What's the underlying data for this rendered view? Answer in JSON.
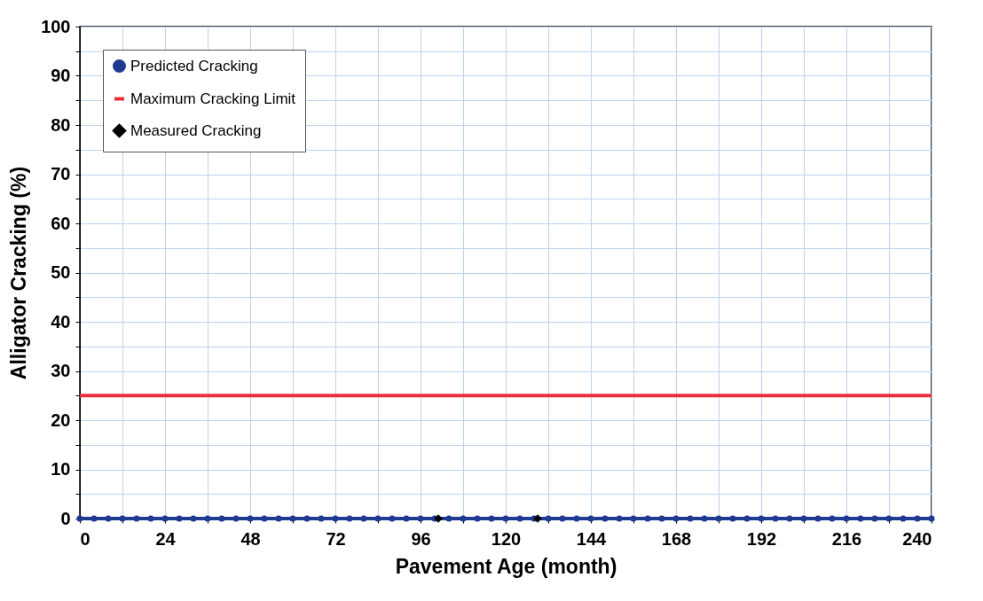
{
  "chart_data": {
    "type": "line",
    "xlabel": "Pavement Age (month)",
    "ylabel": "Alligator Cracking (%)",
    "xlim": [
      0,
      240
    ],
    "ylim": [
      0,
      100
    ],
    "xticks": [
      0,
      {
        "value": 12,
        "label": null
      },
      24,
      {
        "value": 36,
        "label": null
      },
      48,
      {
        "value": 60,
        "label": null
      },
      72,
      {
        "value": 84,
        "label": null
      },
      96,
      {
        "value": 108,
        "label": null
      },
      120,
      {
        "value": 132,
        "label": null
      },
      144,
      {
        "value": 156,
        "label": null
      },
      168,
      {
        "value": 180,
        "label": null
      },
      192,
      {
        "value": 204,
        "label": null
      },
      216,
      {
        "value": 228,
        "label": null
      },
      240
    ],
    "yticks": [
      0,
      {
        "value": 5,
        "label": null
      },
      10,
      {
        "value": 15,
        "label": null
      },
      20,
      {
        "value": 25,
        "label": null
      },
      30,
      {
        "value": 35,
        "label": null
      },
      40,
      {
        "value": 45,
        "label": null
      },
      50,
      {
        "value": 55,
        "label": null
      },
      60,
      {
        "value": 65,
        "label": null
      },
      70,
      {
        "value": 75,
        "label": null
      },
      80,
      {
        "value": 85,
        "label": null
      },
      90,
      {
        "value": 95,
        "label": null
      },
      100
    ],
    "grid": true,
    "legend": "top left",
    "series": [
      {
        "name": "Predicted Cracking",
        "marker": "circle",
        "color": "#1f3a93",
        "x": [
          0,
          4,
          8,
          12,
          16,
          20,
          24,
          28,
          32,
          36,
          40,
          44,
          48,
          52,
          56,
          60,
          64,
          68,
          72,
          76,
          80,
          84,
          88,
          92,
          96,
          100,
          104,
          108,
          112,
          116,
          120,
          124,
          128,
          132,
          136,
          140,
          144,
          148,
          152,
          156,
          160,
          164,
          168,
          172,
          176,
          180,
          184,
          188,
          192,
          196,
          200,
          204,
          208,
          212,
          216,
          220,
          224,
          228,
          232,
          236,
          240
        ],
        "values": [
          0,
          0,
          0,
          0,
          0,
          0,
          0,
          0,
          0,
          0,
          0,
          0,
          0,
          0,
          0,
          0,
          0,
          0,
          0,
          0,
          0,
          0,
          0,
          0,
          0,
          0,
          0,
          0,
          0,
          0,
          0,
          0,
          0,
          0,
          0,
          0,
          0,
          0,
          0,
          0,
          0,
          0,
          0,
          0,
          0,
          0,
          0,
          0,
          0,
          0,
          0,
          0,
          0,
          0,
          0,
          0,
          0,
          0,
          0,
          0,
          0
        ]
      },
      {
        "name": "Maximum Cracking Limit",
        "marker": "none",
        "color": "#e8303a",
        "x": [
          0,
          240
        ],
        "values": [
          25,
          25
        ]
      },
      {
        "name": "Measured Cracking",
        "type": "scatter",
        "marker": "diamond",
        "color": "#000000",
        "x": [
          101,
          129
        ],
        "values": [
          0,
          0
        ]
      }
    ]
  }
}
